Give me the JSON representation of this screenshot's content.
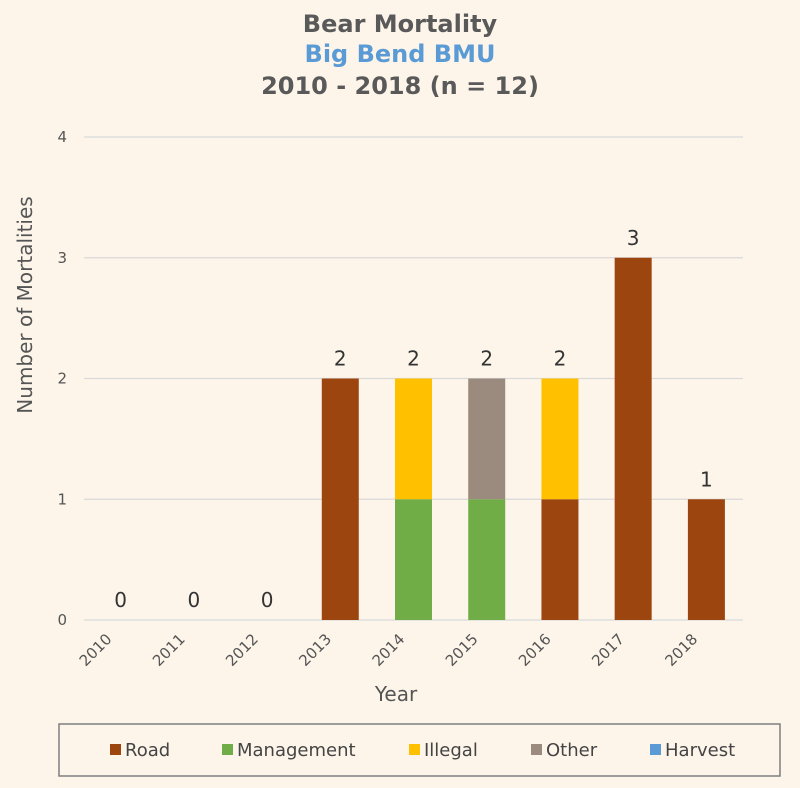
{
  "chart_data": {
    "type": "bar",
    "stacked": true,
    "title": "Bear Mortality",
    "subtitle": "Big Bend BMU",
    "title_line3": "2010 - 2018 (n = 12)",
    "xlabel": "Year",
    "ylabel": "Number of Mortalities",
    "ylim": [
      0,
      4
    ],
    "yticks": [
      "0",
      "1",
      "2",
      "3",
      "4"
    ],
    "grid": true,
    "legend_position": "bottom",
    "categories": [
      "2010",
      "2011",
      "2012",
      "2013",
      "2014",
      "2015",
      "2016",
      "2017",
      "2018"
    ],
    "series": [
      {
        "name": "Road",
        "color": "#9c450e",
        "values": [
          0,
          0,
          0,
          2,
          0,
          0,
          1,
          3,
          1
        ]
      },
      {
        "name": "Management",
        "color": "#70ad47",
        "values": [
          0,
          0,
          0,
          0,
          1,
          1,
          0,
          0,
          0
        ]
      },
      {
        "name": "Illegal",
        "color": "#ffc000",
        "values": [
          0,
          0,
          0,
          0,
          1,
          0,
          1,
          0,
          0
        ]
      },
      {
        "name": "Other",
        "color": "#9a8b7e",
        "values": [
          0,
          0,
          0,
          0,
          0,
          1,
          0,
          0,
          0
        ]
      },
      {
        "name": "Harvest",
        "color": "#5b9bd5",
        "values": [
          0,
          0,
          0,
          0,
          0,
          0,
          0,
          0,
          0
        ]
      }
    ],
    "totals": [
      "0",
      "0",
      "0",
      "2",
      "2",
      "2",
      "2",
      "3",
      "1"
    ],
    "colors": {
      "title": "#595959",
      "subtitle": "#5b9bd5",
      "grid": "#d9d9d9"
    }
  }
}
